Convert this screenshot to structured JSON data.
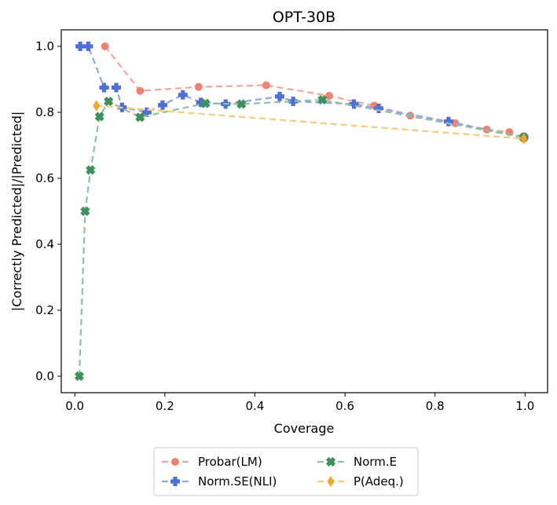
{
  "chart_data": {
    "type": "line",
    "title": "OPT-30B",
    "xlabel": "Coverage",
    "ylabel": "|Correctly Predicted|/|Predicted|",
    "xlim": [
      -0.03,
      1.05
    ],
    "ylim": [
      -0.05,
      1.05
    ],
    "xticks": [
      0.0,
      0.2,
      0.4,
      0.6,
      0.8,
      1.0
    ],
    "xtick_labels": [
      "0.0",
      "0.2",
      "0.4",
      "0.6",
      "0.8",
      "1.0"
    ],
    "yticks": [
      0.0,
      0.2,
      0.4,
      0.6,
      0.8,
      1.0
    ],
    "ytick_labels": [
      "0.0",
      "0.2",
      "0.4",
      "0.6",
      "0.8",
      "1.0"
    ],
    "legend_position": "bottom-center",
    "series": [
      {
        "name": "Probar(LM)",
        "color": "#f08070",
        "line_color": "#f4a69a",
        "marker": "circle",
        "points": [
          [
            0.067,
            1.0
          ],
          [
            0.145,
            0.865
          ],
          [
            0.275,
            0.877
          ],
          [
            0.425,
            0.882
          ],
          [
            0.565,
            0.85
          ],
          [
            0.665,
            0.82
          ],
          [
            0.745,
            0.79
          ],
          [
            0.845,
            0.767
          ],
          [
            0.915,
            0.748
          ],
          [
            0.965,
            0.74
          ],
          [
            0.997,
            0.724
          ]
        ]
      },
      {
        "name": "Norm.SE(NLI)",
        "color": "#4f6fd6",
        "line_color": "#92a6e6",
        "marker": "plus",
        "points": [
          [
            0.012,
            1.0
          ],
          [
            0.03,
            1.0
          ],
          [
            0.065,
            0.875
          ],
          [
            0.092,
            0.875
          ],
          [
            0.105,
            0.815
          ],
          [
            0.16,
            0.8
          ],
          [
            0.195,
            0.822
          ],
          [
            0.24,
            0.853
          ],
          [
            0.28,
            0.83
          ],
          [
            0.335,
            0.825
          ],
          [
            0.455,
            0.848
          ],
          [
            0.485,
            0.833
          ],
          [
            0.62,
            0.825
          ],
          [
            0.675,
            0.812
          ],
          [
            0.83,
            0.772
          ],
          [
            0.997,
            0.724
          ]
        ]
      },
      {
        "name": "Norm.E",
        "color": "#3f8f5f",
        "line_color": "#8fc09f",
        "marker": "x",
        "points": [
          [
            0.01,
            0.0
          ],
          [
            0.023,
            0.5
          ],
          [
            0.035,
            0.625
          ],
          [
            0.055,
            0.787
          ],
          [
            0.075,
            0.833
          ],
          [
            0.145,
            0.785
          ],
          [
            0.29,
            0.827
          ],
          [
            0.37,
            0.825
          ],
          [
            0.55,
            0.838
          ],
          [
            0.997,
            0.724
          ]
        ]
      },
      {
        "name": "P(Adeq.)",
        "color": "#f5a623",
        "line_color": "#f8cc7a",
        "marker": "diamond",
        "points": [
          [
            0.048,
            0.82
          ],
          [
            0.997,
            0.72
          ]
        ]
      }
    ]
  }
}
